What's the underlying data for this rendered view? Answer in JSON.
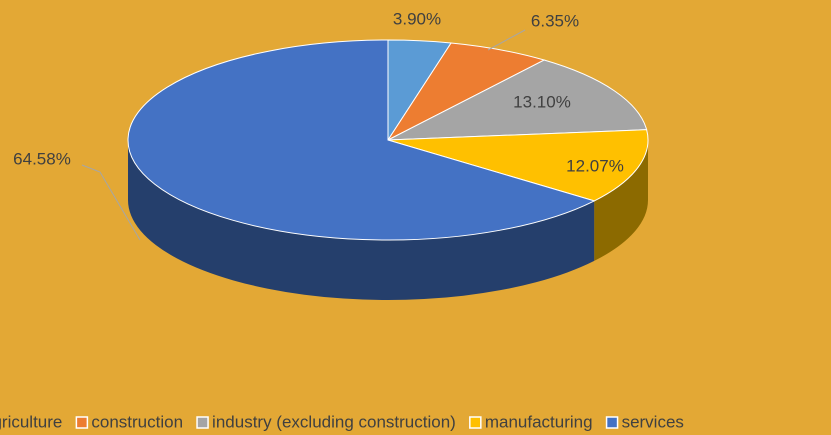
{
  "chart_data": {
    "type": "pie3d",
    "categories": [
      "agriculture",
      "construction",
      "industry (excluding construction)",
      "manufacturing",
      "services"
    ],
    "values": [
      3.9,
      6.35,
      13.1,
      12.07,
      64.58
    ],
    "value_labels": [
      "3.90%",
      "6.35%",
      "13.10%",
      "12.07%",
      "64.58%"
    ],
    "colors": [
      "#5b9bd5",
      "#ed7d31",
      "#a5a5a5",
      "#ffc000",
      "#4472c4"
    ],
    "legend": "bottom"
  }
}
